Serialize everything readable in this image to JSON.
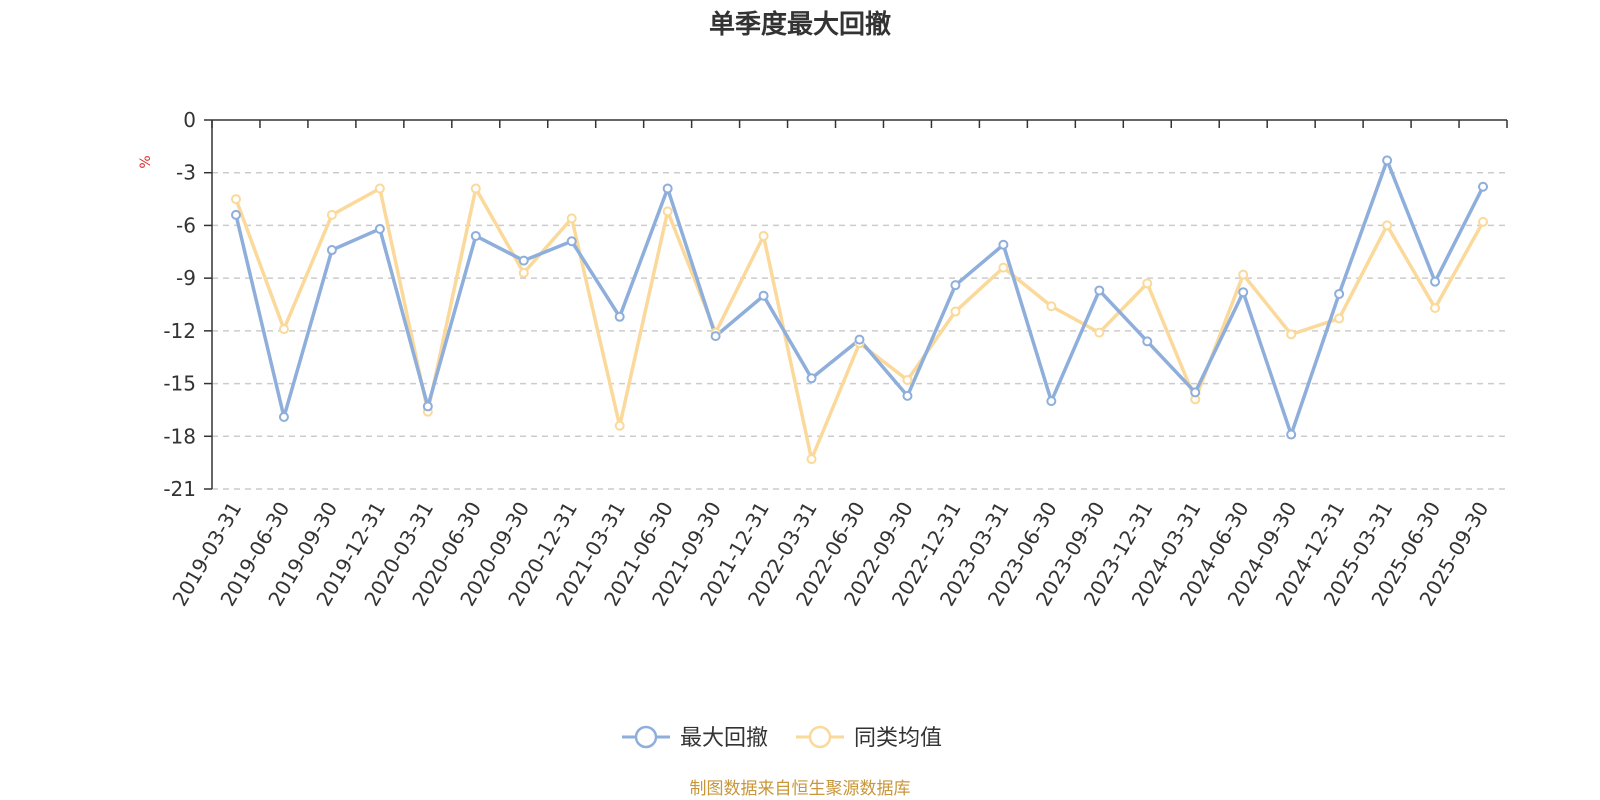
{
  "chart_data": {
    "type": "line",
    "title": "单季度最大回撤",
    "ylabel": "%",
    "ylim": [
      -21,
      0
    ],
    "yticks": [
      0,
      -3,
      -6,
      -9,
      -12,
      -15,
      -18,
      -21
    ],
    "grid": true,
    "legend_position": "bottom-center",
    "categories": [
      "2019-03-31",
      "2019-06-30",
      "2019-09-30",
      "2019-12-31",
      "2020-03-31",
      "2020-06-30",
      "2020-09-30",
      "2020-12-31",
      "2021-03-31",
      "2021-06-30",
      "2021-09-30",
      "2021-12-31",
      "2022-03-31",
      "2022-06-30",
      "2022-09-30",
      "2022-12-31",
      "2023-03-31",
      "2023-06-30",
      "2023-09-30",
      "2023-12-31",
      "2024-03-31",
      "2024-06-30",
      "2024-09-30",
      "2024-12-31",
      "2025-03-31",
      "2025-06-30",
      "2025-09-30"
    ],
    "series": [
      {
        "name": "最大回撤",
        "color": "#8eaedb",
        "values": [
          -5.4,
          -16.9,
          -7.4,
          -6.2,
          -16.3,
          -6.6,
          -8.0,
          -6.9,
          -11.2,
          -3.9,
          -12.3,
          -10.0,
          -14.7,
          -12.5,
          -15.7,
          -9.4,
          -7.1,
          -16.0,
          -9.7,
          -12.6,
          -15.5,
          -9.8,
          -17.9,
          -9.9,
          -2.3,
          -9.2,
          -3.8
        ]
      },
      {
        "name": "同类均值",
        "color": "#fbd99a",
        "values": [
          -4.5,
          -11.9,
          -5.4,
          -3.9,
          -16.6,
          -3.9,
          -8.7,
          -5.6,
          -17.4,
          -5.2,
          -12.1,
          -6.6,
          -19.3,
          -12.7,
          -14.8,
          -10.9,
          -8.4,
          -10.6,
          -12.1,
          -9.3,
          -15.9,
          -8.8,
          -12.2,
          -11.3,
          -6.0,
          -10.7,
          -5.8
        ]
      }
    ]
  },
  "legend": [
    {
      "label": "最大回撤",
      "icon": "circle-line-icon",
      "color": "#8eaedb"
    },
    {
      "label": "同类均值",
      "icon": "circle-line-icon",
      "color": "#fbd99a"
    }
  ],
  "source_note": "制图数据来自恒生聚源数据库"
}
